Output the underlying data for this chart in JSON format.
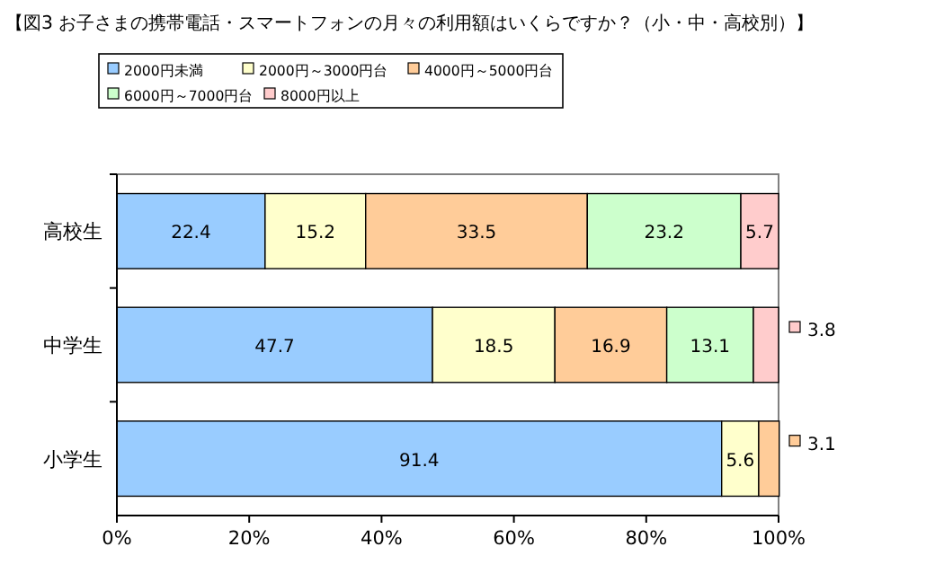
{
  "chart_data": {
    "type": "bar",
    "orientation": "horizontal",
    "stacked": true,
    "title": "【図3 お子さまの携帯電話・スマートフォンの月々の利用額はいくらですか？（小・中・高校別）】",
    "categories": [
      "高校生",
      "中学生",
      "小学生"
    ],
    "series": [
      {
        "name": "2000円未満",
        "color": "#99ccff",
        "values": [
          22.4,
          47.7,
          91.4
        ]
      },
      {
        "name": "2000円～3000円台",
        "color": "#ffffcc",
        "values": [
          15.2,
          18.5,
          5.6
        ]
      },
      {
        "name": "4000円～5000円台",
        "color": "#ffcc99",
        "values": [
          33.5,
          16.9,
          3.1
        ]
      },
      {
        "name": "6000円～7000円台",
        "color": "#ccffcc",
        "values": [
          23.2,
          13.1,
          null
        ]
      },
      {
        "name": "8000円以上",
        "color": "#ffcccc",
        "values": [
          5.7,
          3.8,
          null
        ]
      }
    ],
    "xlim": [
      0,
      100
    ],
    "xticks": [
      {
        "value": 0,
        "label": "0%"
      },
      {
        "value": 20,
        "label": "20%"
      },
      {
        "value": 40,
        "label": "40%"
      },
      {
        "value": 60,
        "label": "60%"
      },
      {
        "value": 80,
        "label": "80%"
      },
      {
        "value": 100,
        "label": "100%"
      }
    ],
    "data_labels": true,
    "legend": "top left",
    "grid": false
  }
}
